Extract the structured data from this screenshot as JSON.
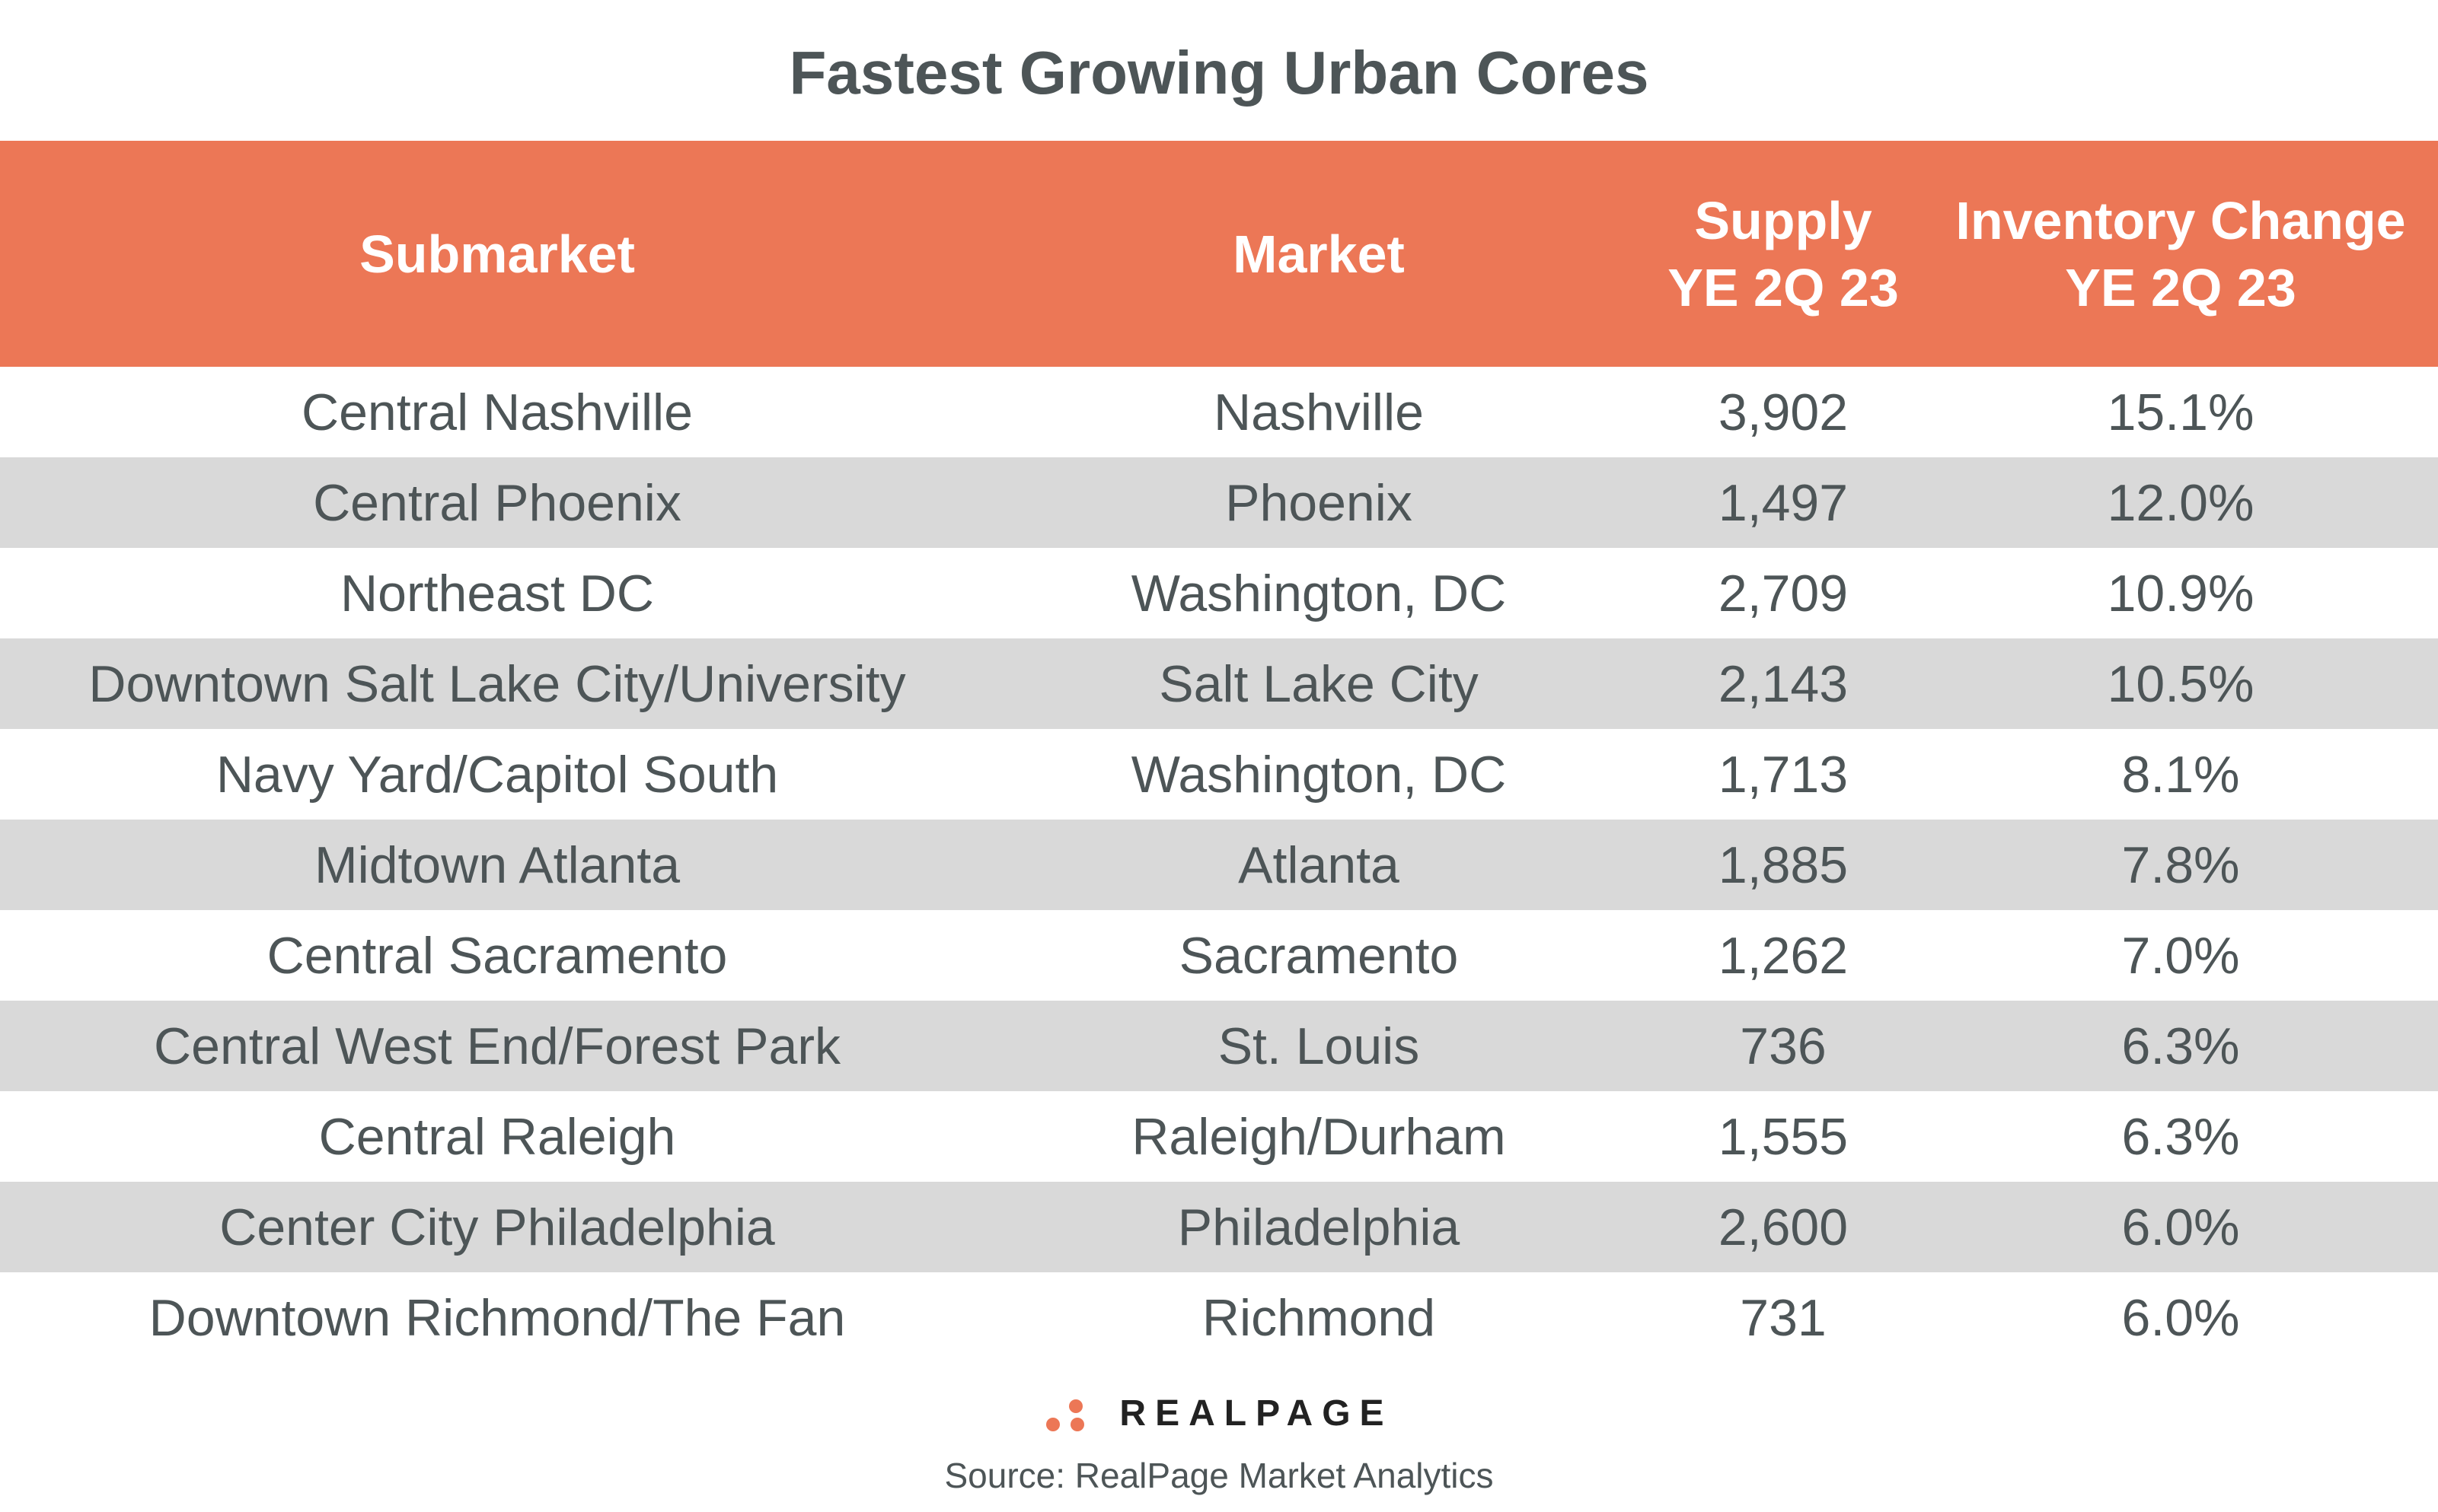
{
  "title": "Fastest Growing Urban Cores",
  "colors": {
    "header_bg": "#ec7756",
    "alt_row_bg": "#d9d9d9",
    "text": "#4d5557"
  },
  "table": {
    "headers": [
      "Submarket",
      "Market",
      "Supply YE 2Q 23",
      "Inventory Change YE 2Q 23"
    ],
    "rows": [
      [
        "Central Nashville",
        "Nashville",
        "3,902",
        "15.1%"
      ],
      [
        "Central Phoenix",
        "Phoenix",
        "1,497",
        "12.0%"
      ],
      [
        "Northeast DC",
        "Washington, DC",
        "2,709",
        "10.9%"
      ],
      [
        "Downtown Salt Lake City/University",
        "Salt Lake City",
        "2,143",
        "10.5%"
      ],
      [
        "Navy Yard/Capitol South",
        "Washington, DC",
        "1,713",
        "8.1%"
      ],
      [
        "Midtown Atlanta",
        "Atlanta",
        "1,885",
        "7.8%"
      ],
      [
        "Central Sacramento",
        "Sacramento",
        "1,262",
        "7.0%"
      ],
      [
        "Central West End/Forest Park",
        "St. Louis",
        "736",
        "6.3%"
      ],
      [
        "Central Raleigh",
        "Raleigh/Durham",
        "1,555",
        "6.3%"
      ],
      [
        "Center City Philadelphia",
        "Philadelphia",
        "2,600",
        "6.0%"
      ],
      [
        "Downtown Richmond/The Fan",
        "Richmond",
        "731",
        "6.0%"
      ]
    ]
  },
  "logo": {
    "text": "REALPAGE",
    "icon": "three-dots-logo-icon"
  },
  "source": "Source: RealPage Market Analytics"
}
